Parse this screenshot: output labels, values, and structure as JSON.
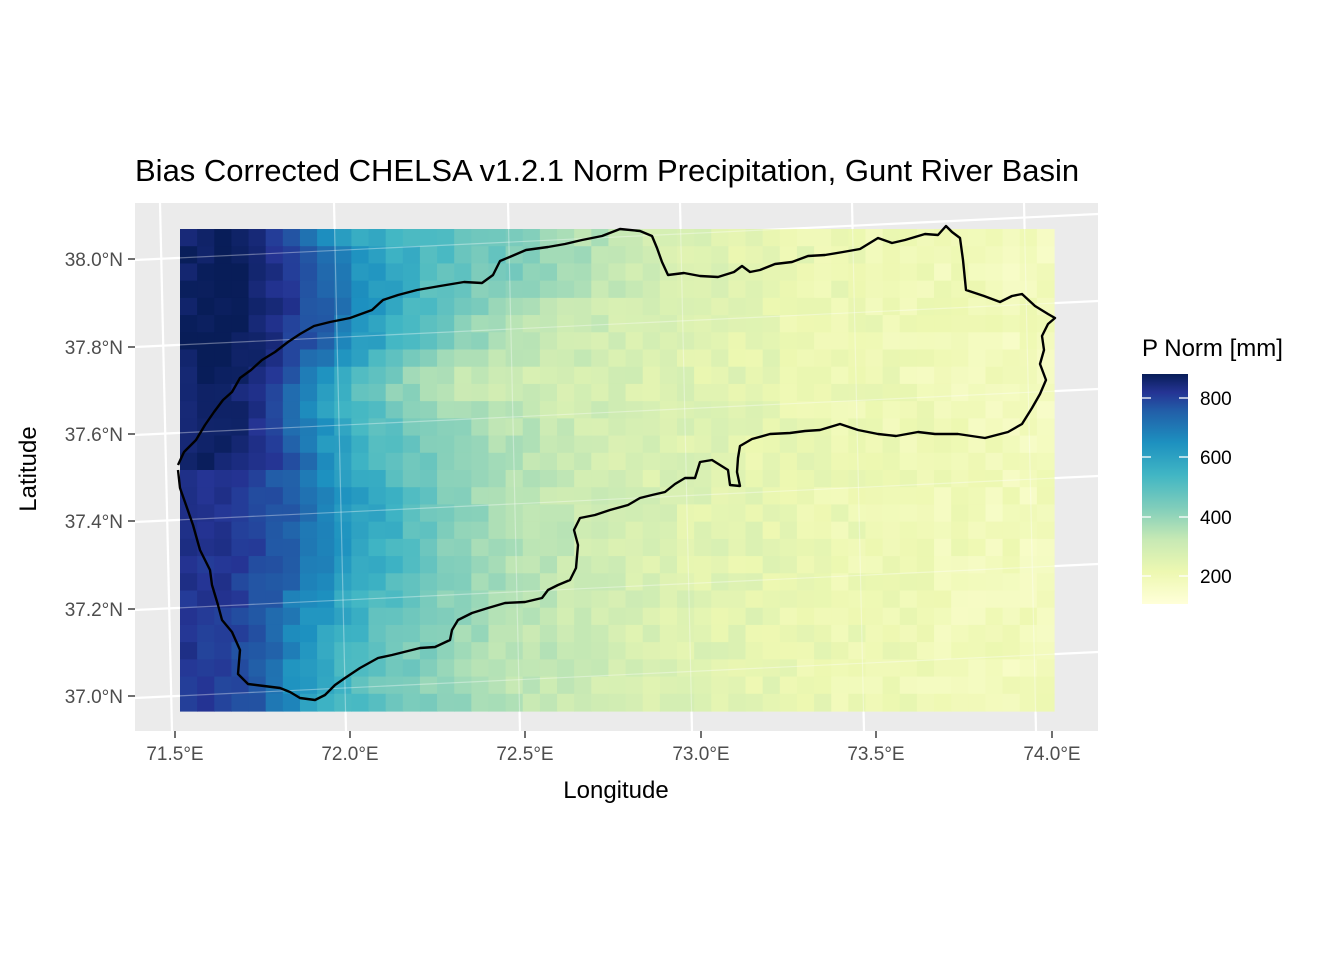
{
  "title": "Bias Corrected CHELSA v1.2.1 Norm Precipitation, Gunt River Basin",
  "xlabel": "Longitude",
  "ylabel": "Latitude",
  "x_ticks": [
    "71.5°E",
    "72.0°E",
    "72.5°E",
    "73.0°E",
    "73.5°E",
    "74.0°E"
  ],
  "y_ticks": [
    "38.0°N",
    "37.8°N",
    "37.6°N",
    "37.4°N",
    "37.2°N",
    "37.0°N"
  ],
  "legend": {
    "title": "P Norm [mm]",
    "labels": [
      "800",
      "600",
      "400",
      "200"
    ]
  },
  "colors": {
    "panel_background": "#ebebeb",
    "gridline": "#ffffff",
    "boundary": "#000000",
    "scale_low": "#ffffd9",
    "scale_mid": "#41b6c4",
    "scale_high": "#081d58"
  },
  "chart_data": {
    "type": "heatmap",
    "title": "Bias Corrected CHELSA v1.2.1 Norm Precipitation, Gunt River Basin",
    "xlabel": "Longitude",
    "ylabel": "Latitude",
    "xlim": [
      71.5,
      74.0
    ],
    "ylim": [
      36.97,
      38.06
    ],
    "value_range": [
      120,
      870
    ],
    "legend_title": "P Norm [mm]",
    "legend_placement": "right",
    "colormap": "YlGnBu",
    "grid": true
  }
}
